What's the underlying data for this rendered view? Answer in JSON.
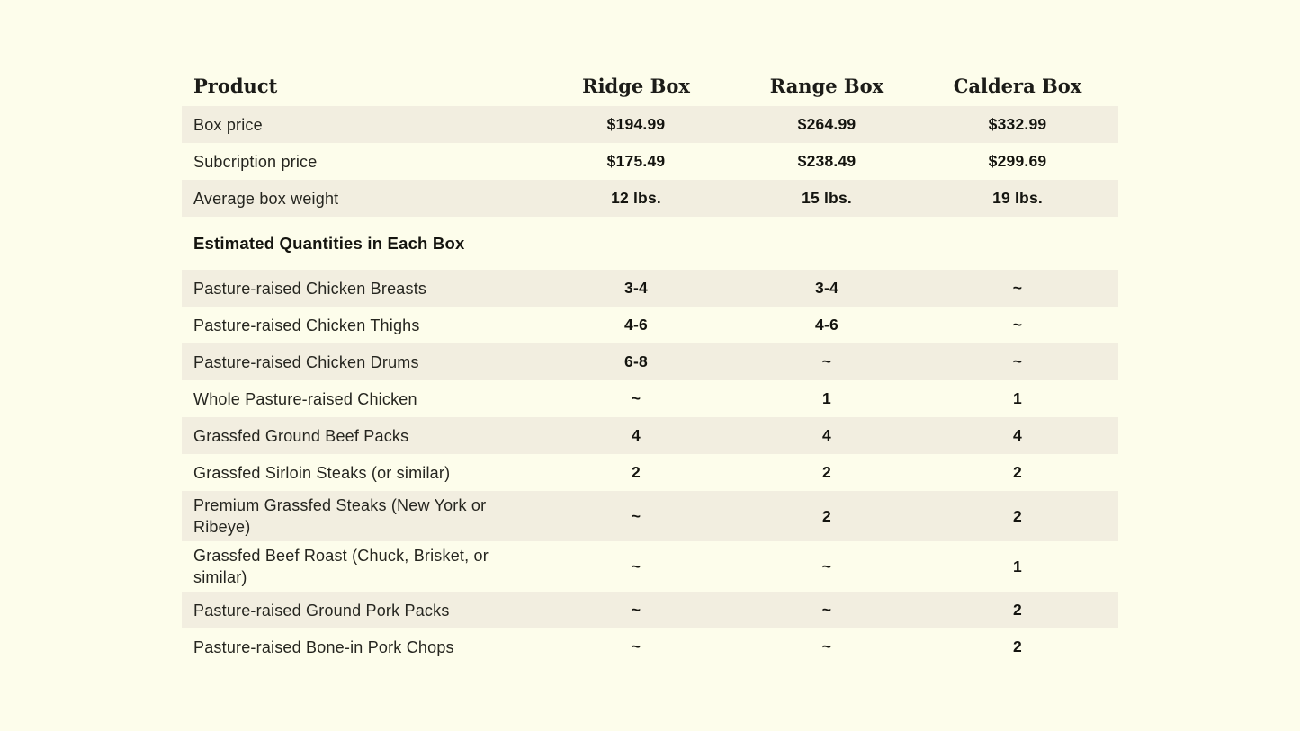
{
  "page": {
    "background_color": "#FDFDEB",
    "stripe_color": "#F2EEE0",
    "text_color": "#25251F"
  },
  "table": {
    "columns": [
      "Product",
      "Ridge Box",
      "Range Box",
      "Caldera Box"
    ],
    "top_rows": [
      {
        "label": "Box price",
        "values": [
          "$194.99",
          "$264.99",
          "$332.99"
        ],
        "shaded": true
      },
      {
        "label": "Subcription price",
        "values": [
          "$175.49",
          "$238.49",
          "$299.69"
        ],
        "shaded": false
      },
      {
        "label": "Average box weight",
        "values": [
          "12 lbs.",
          "15 lbs.",
          "19 lbs."
        ],
        "shaded": true
      }
    ],
    "section_header": "Estimated Quantities in Each Box",
    "quantity_rows": [
      {
        "label": "Pasture-raised Chicken Breasts",
        "values": [
          "3-4",
          "3-4",
          "~"
        ],
        "shaded": true
      },
      {
        "label": "Pasture-raised Chicken Thighs",
        "values": [
          "4-6",
          "4-6",
          "~"
        ],
        "shaded": false
      },
      {
        "label": "Pasture-raised Chicken Drums",
        "values": [
          "6-8",
          "~",
          "~"
        ],
        "shaded": true
      },
      {
        "label": "Whole Pasture-raised Chicken",
        "values": [
          "~",
          "1",
          "1"
        ],
        "shaded": false
      },
      {
        "label": "Grassfed Ground Beef Packs",
        "values": [
          "4",
          "4",
          "4"
        ],
        "shaded": true
      },
      {
        "label": "Grassfed Sirloin Steaks (or similar)",
        "values": [
          "2",
          "2",
          "2"
        ],
        "shaded": false
      },
      {
        "label": "Premium Grassfed Steaks (New York or Ribeye)",
        "values": [
          "~",
          "2",
          "2"
        ],
        "shaded": true
      },
      {
        "label": "Grassfed Beef Roast (Chuck, Brisket, or similar)",
        "values": [
          "~",
          "~",
          "1"
        ],
        "shaded": false
      },
      {
        "label": "Pasture-raised Ground Pork Packs",
        "values": [
          "~",
          "~",
          "2"
        ],
        "shaded": true
      },
      {
        "label": "Pasture-raised Bone-in Pork Chops",
        "values": [
          "~",
          "~",
          "2"
        ],
        "shaded": false
      }
    ]
  }
}
